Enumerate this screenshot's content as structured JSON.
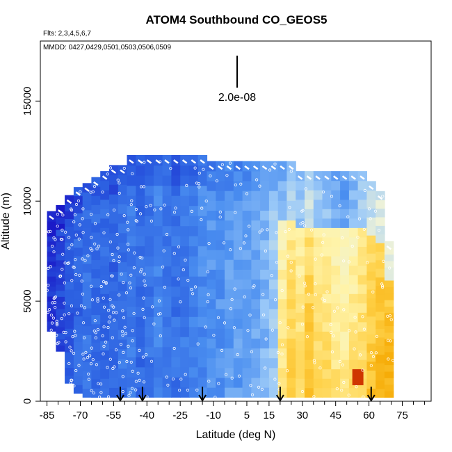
{
  "chart_data": {
    "type": "heatmap",
    "title": "ATOM4 Southbound CO_GEOS5",
    "flights_label": "Flts: 2,3,4,5,6,7",
    "dates_label": "MMDD: 0427,0429,0501,0503,0506,0509",
    "scale_bar_label": "2.0e-08",
    "xlabel": "Latitude (deg N)",
    "ylabel": "Altitude (m)",
    "xlim": [
      -88,
      88
    ],
    "ylim": [
      0,
      18000
    ],
    "x_ticks": [
      -85,
      -70,
      -55,
      -40,
      -25,
      -10,
      5,
      15,
      30,
      45,
      60,
      75
    ],
    "y_ticks": [
      0,
      5000,
      10000,
      15000
    ],
    "colormap": [
      "#1a1ac8",
      "#2a5de0",
      "#4a8ef0",
      "#9ccaf8",
      "#eef2d8",
      "#fff3a8",
      "#ffd24a",
      "#f5a800",
      "#c82000"
    ],
    "curtain_columns": [
      {
        "lat": -83,
        "top": 9500,
        "bottom": 3500,
        "level": 0.05
      },
      {
        "lat": -79,
        "top": 9800,
        "bottom": 2500,
        "level": 0.08
      },
      {
        "lat": -75,
        "top": 10300,
        "bottom": 900,
        "level": 0.12
      },
      {
        "lat": -71,
        "top": 10700,
        "bottom": 400,
        "level": 0.15
      },
      {
        "lat": -67,
        "top": 10900,
        "bottom": 200,
        "level": 0.18
      },
      {
        "lat": -63,
        "top": 11200,
        "bottom": 200,
        "level": 0.17
      },
      {
        "lat": -59,
        "top": 11500,
        "bottom": 200,
        "level": 0.16
      },
      {
        "lat": -55,
        "top": 11800,
        "bottom": 200,
        "level": 0.14
      },
      {
        "lat": -51,
        "top": 11800,
        "bottom": 200,
        "level": 0.18
      },
      {
        "lat": -47,
        "top": 12300,
        "bottom": 200,
        "level": 0.2
      },
      {
        "lat": -43,
        "top": 12300,
        "bottom": 200,
        "level": 0.16
      },
      {
        "lat": -39,
        "top": 12300,
        "bottom": 200,
        "level": 0.18
      },
      {
        "lat": -35,
        "top": 12300,
        "bottom": 200,
        "level": 0.22
      },
      {
        "lat": -31,
        "top": 12300,
        "bottom": 200,
        "level": 0.2
      },
      {
        "lat": -27,
        "top": 12300,
        "bottom": 200,
        "level": 0.18
      },
      {
        "lat": -23,
        "top": 12300,
        "bottom": 200,
        "level": 0.2
      },
      {
        "lat": -19,
        "top": 12300,
        "bottom": 200,
        "level": 0.22
      },
      {
        "lat": -15,
        "top": 12300,
        "bottom": 200,
        "level": 0.24
      },
      {
        "lat": -11,
        "top": 12000,
        "bottom": 200,
        "level": 0.26
      },
      {
        "lat": -7,
        "top": 12000,
        "bottom": 200,
        "level": 0.26
      },
      {
        "lat": -3,
        "top": 12000,
        "bottom": 200,
        "level": 0.28
      },
      {
        "lat": 1,
        "top": 12000,
        "bottom": 200,
        "level": 0.28
      },
      {
        "lat": 5,
        "top": 12000,
        "bottom": 200,
        "level": 0.3
      },
      {
        "lat": 9,
        "top": 12000,
        "bottom": 200,
        "level": 0.3
      },
      {
        "lat": 13,
        "top": 12000,
        "bottom": 200,
        "level": 0.33
      },
      {
        "lat": 17,
        "top": 12000,
        "bottom": 200,
        "level": 0.38
      },
      {
        "lat": 21,
        "top": 12000,
        "bottom": 200,
        "level": 0.55
      },
      {
        "lat": 25,
        "top": 12000,
        "bottom": 200,
        "level": 0.62
      },
      {
        "lat": 29,
        "top": 11500,
        "bottom": 200,
        "level": 0.58
      },
      {
        "lat": 33,
        "top": 11500,
        "bottom": 200,
        "level": 0.66
      },
      {
        "lat": 37,
        "top": 11500,
        "bottom": 200,
        "level": 0.6
      },
      {
        "lat": 41,
        "top": 11500,
        "bottom": 200,
        "level": 0.58
      },
      {
        "lat": 45,
        "top": 11500,
        "bottom": 200,
        "level": 0.55
      },
      {
        "lat": 49,
        "top": 11500,
        "bottom": 200,
        "level": 0.52
      },
      {
        "lat": 53,
        "top": 11500,
        "bottom": 200,
        "level": 0.56
      },
      {
        "lat": 57,
        "top": 11500,
        "bottom": 200,
        "level": 0.6
      },
      {
        "lat": 61,
        "top": 11000,
        "bottom": 200,
        "level": 0.66
      },
      {
        "lat": 65,
        "top": 10500,
        "bottom": 200,
        "level": 0.7
      },
      {
        "lat": 69,
        "top": 8000,
        "bottom": 200,
        "level": 0.72
      }
    ],
    "hotspot": {
      "lat": 55,
      "alt": 1200,
      "level": 0.98
    },
    "profile_arrows_lat": [
      -52,
      -42,
      -15,
      20,
      61
    ]
  }
}
